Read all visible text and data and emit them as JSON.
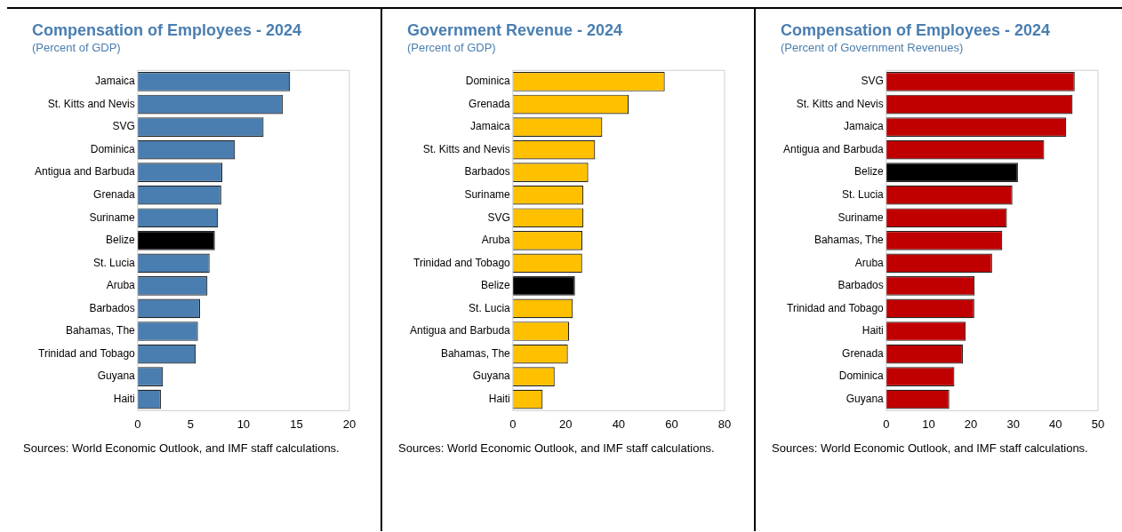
{
  "chart_data": [
    {
      "type": "bar",
      "orientation": "horizontal",
      "title": "Compensation of Employees - 2024",
      "subtitle": "(Percent of GDP)",
      "categories": [
        "Jamaica",
        "St. Kitts and Nevis",
        "SVG",
        "Dominica",
        "Antigua and Barbuda",
        "Grenada",
        "Suriname",
        "Belize",
        "St. Lucia",
        "Aruba",
        "Barbados",
        "Bahamas, The",
        "Trinidad and Tobago",
        "Guyana",
        "Haiti"
      ],
      "values": [
        14.4,
        13.7,
        11.9,
        9.2,
        8.0,
        7.9,
        7.6,
        7.3,
        6.8,
        6.6,
        5.9,
        5.7,
        5.5,
        2.4,
        2.2
      ],
      "colors": [
        "#4a7eb0",
        "#4a7eb0",
        "#4a7eb0",
        "#4a7eb0",
        "#4a7eb0",
        "#4a7eb0",
        "#4a7eb0",
        "#000000",
        "#4a7eb0",
        "#4a7eb0",
        "#4a7eb0",
        "#4a7eb0",
        "#4a7eb0",
        "#4a7eb0",
        "#4a7eb0"
      ],
      "xlim": [
        0,
        20
      ],
      "xticks": [
        0,
        5,
        10,
        15,
        20
      ],
      "grid": false,
      "legend": false,
      "annotations": [
        "Sources: World Economic Outlook, and IMF staff calculations."
      ]
    },
    {
      "type": "bar",
      "orientation": "horizontal",
      "title": "Government Revenue - 2024",
      "subtitle": "(Percent of GDP)",
      "categories": [
        "Dominica",
        "Grenada",
        "Jamaica",
        "St. Kitts and Nevis",
        "Barbados",
        "Suriname",
        "SVG",
        "Aruba",
        "Trinidad and Tobago",
        "Belize",
        "St. Lucia",
        "Antigua and Barbuda",
        "Bahamas, The",
        "Guyana",
        "Haiti"
      ],
      "values": [
        57.4,
        43.8,
        33.8,
        31.1,
        28.5,
        26.7,
        26.7,
        26.3,
        26.2,
        23.5,
        22.7,
        21.3,
        20.8,
        15.8,
        11.3
      ],
      "colors": [
        "#ffc000",
        "#ffc000",
        "#ffc000",
        "#ffc000",
        "#ffc000",
        "#ffc000",
        "#ffc000",
        "#ffc000",
        "#ffc000",
        "#000000",
        "#ffc000",
        "#ffc000",
        "#ffc000",
        "#ffc000",
        "#ffc000"
      ],
      "xlim": [
        0,
        80
      ],
      "xticks": [
        0,
        20,
        40,
        60,
        80
      ],
      "grid": false,
      "legend": false,
      "annotations": [
        "Sources: World Economic Outlook, and IMF staff calculations."
      ]
    },
    {
      "type": "bar",
      "orientation": "horizontal",
      "title": "Compensation of Employees - 2024",
      "subtitle": "(Percent of Government Revenues)",
      "categories": [
        "SVG",
        "St. Kitts and Nevis",
        "Jamaica",
        "Antigua and Barbuda",
        "Belize",
        "St. Lucia",
        "Suriname",
        "Bahamas, The",
        "Aruba",
        "Barbados",
        "Trinidad and Tobago",
        "Haiti",
        "Grenada",
        "Dominica",
        "Guyana"
      ],
      "values": [
        44.5,
        44.0,
        42.5,
        37.3,
        31.1,
        29.8,
        28.5,
        27.4,
        25.0,
        20.9,
        20.8,
        18.8,
        18.1,
        16.1,
        14.9
      ],
      "colors": [
        "#c00000",
        "#c00000",
        "#c00000",
        "#c00000",
        "#000000",
        "#c00000",
        "#c00000",
        "#c00000",
        "#c00000",
        "#c00000",
        "#c00000",
        "#c00000",
        "#c00000",
        "#c00000",
        "#c00000"
      ],
      "xlim": [
        0,
        50
      ],
      "xticks": [
        0,
        10,
        20,
        30,
        40,
        50
      ],
      "grid": false,
      "legend": false,
      "annotations": [
        "Sources: World Economic Outlook, and IMF staff calculations."
      ]
    }
  ]
}
